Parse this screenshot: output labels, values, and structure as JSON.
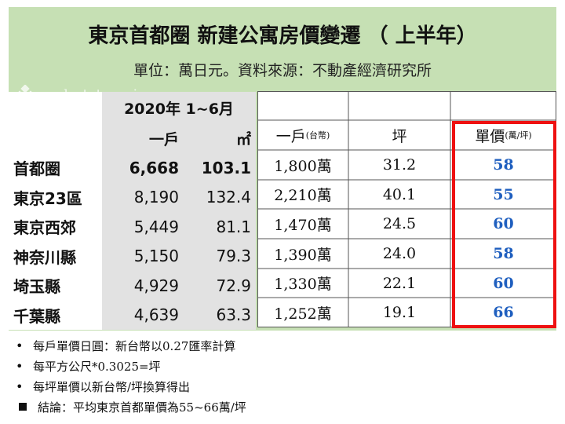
{
  "header": {
    "title": "東京首都圈 新建公寓房價變遷 （ 上半年）",
    "subtitle": "單位：萬日元。資料來源：不動產經濟研究所",
    "watermark": "realestate.co.jp",
    "bg_color": "#c6e0b4"
  },
  "source_table": {
    "period": "2020年 1~6月",
    "col_per_unit": "一戶",
    "col_area": "㎡",
    "rows": [
      {
        "region": "首都圈",
        "price": "6,668",
        "area": "103.1"
      },
      {
        "region": "東京23區",
        "price": "8,190",
        "area": "132.4"
      },
      {
        "region": "東京西郊",
        "price": "5,449",
        "area": "81.1"
      },
      {
        "region": "神奈川縣",
        "price": "5,150",
        "area": "79.3"
      },
      {
        "region": "埼玉縣",
        "price": "4,929",
        "area": "72.9"
      },
      {
        "region": "千葉縣",
        "price": "4,639",
        "area": "63.3"
      }
    ]
  },
  "converted_table": {
    "col_price": "一戶",
    "col_price_unit": "(台幣)",
    "col_ping": "坪",
    "col_unit_price": "單價",
    "col_unit_price_unit": "(萬/坪)",
    "rows": [
      {
        "price": "1,800萬",
        "ping": "31.2",
        "unit_price": "58"
      },
      {
        "price": "2,210萬",
        "ping": "40.1",
        "unit_price": "55"
      },
      {
        "price": "1,470萬",
        "ping": "24.5",
        "unit_price": "60"
      },
      {
        "price": "1,390萬",
        "ping": "24.0",
        "unit_price": "58"
      },
      {
        "price": "1,330萬",
        "ping": "22.1",
        "unit_price": "60"
      },
      {
        "price": "1,252萬",
        "ping": "19.1",
        "unit_price": "66"
      }
    ],
    "highlight_color": "#ee1111",
    "value_color": "#1f5fbf"
  },
  "notes": [
    {
      "marker": "•",
      "text": "每戶單價日圓：新台幣以0.27匯率計算"
    },
    {
      "marker": "•",
      "text": "每平方公尺*0.3025=坪"
    },
    {
      "marker": "•",
      "text": "每坪單價以新台幣/坪換算得出"
    },
    {
      "marker": "■",
      "text": "結論：平均東京首都單價為55~66萬/坪"
    }
  ]
}
